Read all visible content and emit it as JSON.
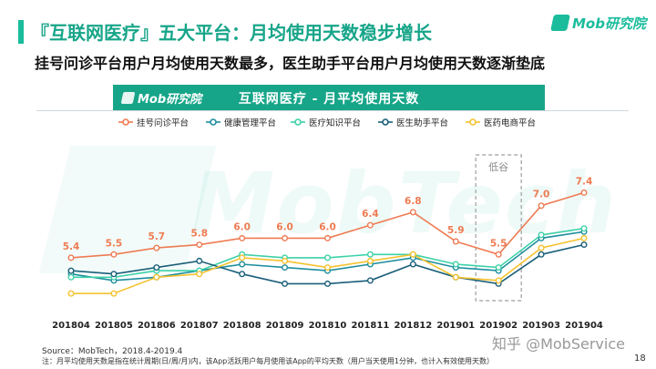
{
  "header": {
    "title": "『互联网医疗』五大平台：月均使用天数稳步增长",
    "brand": "Mob研究院",
    "subtitle": "挂号问诊平台用户月均使用天数最多，医生助手平台用户月均使用天数逐渐垫底"
  },
  "chart_header": {
    "brand": "Mob研究院",
    "title": "互联网医疗 - 月平均使用天数"
  },
  "watermark": "MobTech",
  "annotation": {
    "label": "低谷"
  },
  "footer": {
    "source": "Source：MobTech，2018.4-2019.4",
    "note": "注：月平均使用天数是指在统计周期(日/周/月)内，该App活跃用户每月使用该App的平均天数（用户当天使用1分钟，也计入有效使用天数）",
    "zhihu": "知乎 @MobService",
    "page": "18"
  },
  "colors": {
    "accent": "#17a589",
    "series": [
      "#ee7b52",
      "#1e8e9e",
      "#3dd1a8",
      "#1a5f7a",
      "#f5c22e"
    ]
  },
  "chart_data": {
    "type": "line",
    "categories": [
      "201804",
      "201805",
      "201806",
      "201807",
      "201808",
      "201809",
      "201810",
      "201811",
      "201812",
      "201901",
      "201902",
      "201903",
      "201904"
    ],
    "series": [
      {
        "name": "挂号问诊平台",
        "values": [
          5.4,
          5.5,
          5.7,
          5.8,
          6.0,
          6.0,
          6.0,
          6.4,
          6.8,
          5.9,
          5.5,
          7.0,
          7.4
        ],
        "labels": [
          "5.4",
          "5.5",
          "5.7",
          "5.8",
          "6.0",
          "6.0",
          "6.0",
          "6.4",
          "6.8",
          "5.9",
          "5.5",
          "7.0",
          "7.4"
        ]
      },
      {
        "name": "健康管理平台",
        "values": [
          4.9,
          4.7,
          4.8,
          5.0,
          5.2,
          5.1,
          5.0,
          5.2,
          5.4,
          5.1,
          5.0,
          6.0,
          6.2
        ]
      },
      {
        "name": "医疗知识平台",
        "values": [
          4.8,
          4.8,
          5.0,
          5.0,
          5.5,
          5.4,
          5.4,
          5.5,
          5.5,
          5.2,
          5.1,
          6.1,
          6.3
        ]
      },
      {
        "name": "医生助手平台",
        "values": [
          5.0,
          4.9,
          5.1,
          5.3,
          4.9,
          4.6,
          4.6,
          4.7,
          5.2,
          4.8,
          4.6,
          5.5,
          5.8
        ]
      },
      {
        "name": "医药电商平台",
        "values": [
          4.3,
          4.3,
          4.8,
          4.9,
          5.4,
          5.3,
          5.1,
          5.3,
          5.5,
          4.8,
          4.7,
          5.7,
          6.0
        ]
      }
    ],
    "ylim": [
      3.8,
      8.0
    ],
    "legend_position": "top",
    "highlight_category": "201902",
    "grid": false
  }
}
